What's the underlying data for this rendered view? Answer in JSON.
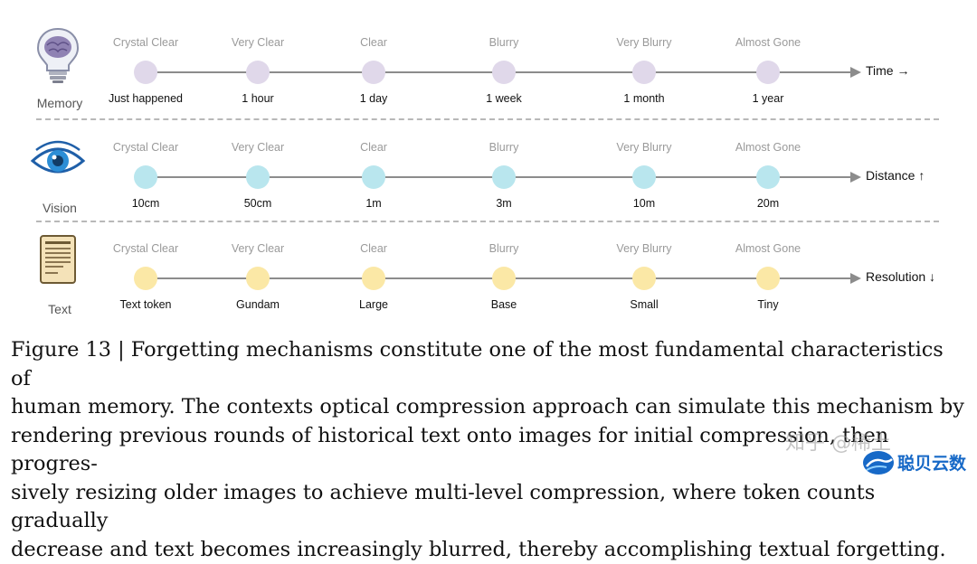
{
  "rows": [
    {
      "label": "Memory",
      "icon": "brain-lightbulb-icon",
      "clarity": [
        "Crystal Clear",
        "Very Clear",
        "Clear",
        "Blurry",
        "Very Blurry",
        "Almost Gone"
      ],
      "ticks": [
        "Just happened",
        "1 hour",
        "1 day",
        "1 week",
        "1 month",
        "1 year"
      ],
      "axis_label": "Time →",
      "dot_color": "#e0d8ea"
    },
    {
      "label": "Vision",
      "icon": "eye-icon",
      "clarity": [
        "Crystal Clear",
        "Very Clear",
        "Clear",
        "Blurry",
        "Very Blurry",
        "Almost Gone"
      ],
      "ticks": [
        "10cm",
        "50cm",
        "1m",
        "3m",
        "10m",
        "20m"
      ],
      "axis_label": "Distance ↑",
      "dot_color": "#b9e6ee"
    },
    {
      "label": "Text",
      "icon": "document-scroll-icon",
      "clarity": [
        "Crystal Clear",
        "Very Clear",
        "Clear",
        "Blurry",
        "Very Blurry",
        "Almost Gone"
      ],
      "ticks": [
        "Text token",
        "Gundam",
        "Large",
        "Base",
        "Small",
        "Tiny"
      ],
      "axis_label": "Resolution ↓",
      "dot_color": "#fbe8a6"
    }
  ],
  "caption": {
    "lines": [
      "Figure 13 | Forgetting mechanisms constitute one of the most fundamental characteristics of",
      "human memory. The contexts optical compression approach can simulate this mechanism by",
      "rendering previous rounds of historical text onto images for initial compression, then progres-",
      "sively resizing older images to achieve multi-level compression, where token counts gradually",
      "decrease and text becomes increasingly blurred, thereby accomplishing textual forgetting."
    ]
  },
  "watermark": {
    "text_a": "知乎 @稀土",
    "text_b": "聪贝云数"
  },
  "colors": {
    "axis": "#8c8c8c",
    "separator": "#b8b8b8",
    "watermark_blue": "#1769c7"
  }
}
